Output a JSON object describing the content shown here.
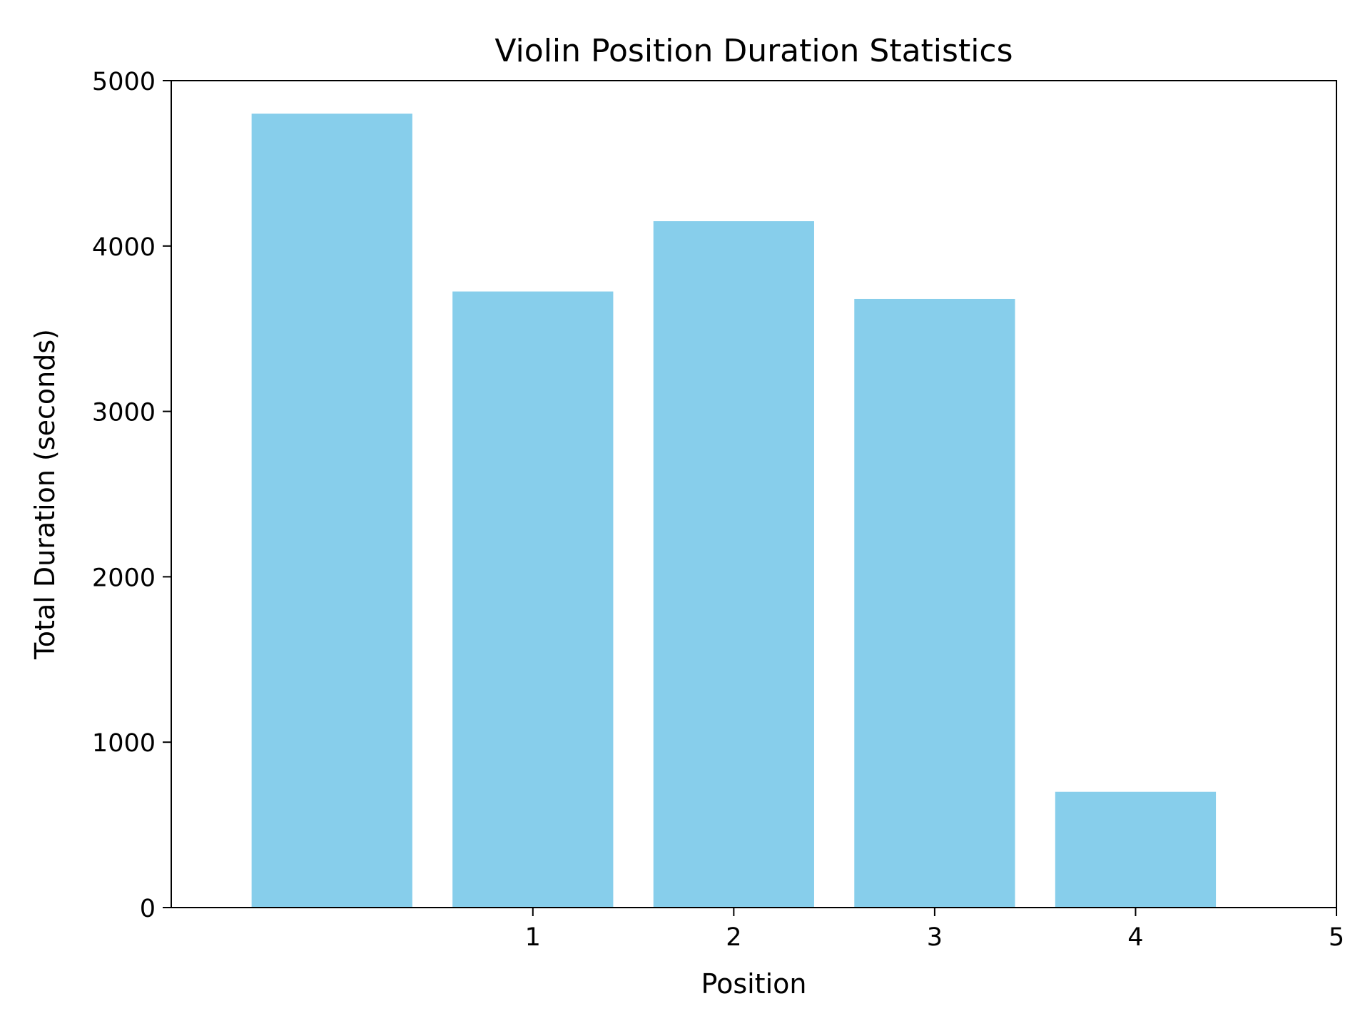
{
  "chart_data": {
    "type": "bar",
    "title": "Violin Position Duration Statistics",
    "xlabel": "Position",
    "ylabel": "Total Duration (seconds)",
    "x": [
      0,
      1,
      2,
      3,
      4
    ],
    "values": [
      4800,
      3725,
      4150,
      3680,
      700
    ],
    "xlim": [
      -0.8,
      5
    ],
    "ylim": [
      0,
      5000
    ],
    "xticks": [
      1,
      2,
      3,
      4,
      5
    ],
    "xtick_labels": [
      "1",
      "2",
      "3",
      "4",
      "5"
    ],
    "yticks": [
      0,
      1000,
      2000,
      3000,
      4000,
      5000
    ],
    "ytick_labels": [
      "0",
      "1000",
      "2000",
      "3000",
      "4000",
      "5000"
    ],
    "bar_color": "#87CEEB",
    "grid": false,
    "legend": false
  }
}
